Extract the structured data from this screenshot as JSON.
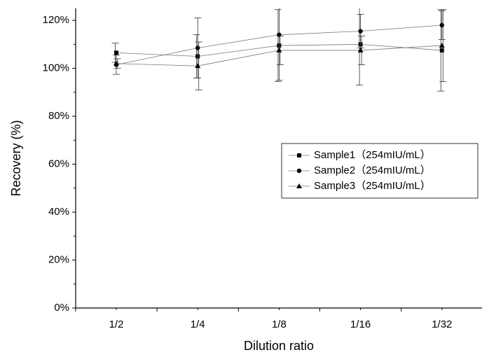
{
  "chart_data": {
    "type": "line",
    "x_label": "Dilution ratio",
    "y_label": "Recovery (%)",
    "categories": [
      "1/2",
      "1/4",
      "1/8",
      "1/16",
      "1/32"
    ],
    "series": [
      {
        "name": "Sample1（254mIU/mL）",
        "marker": "square",
        "color": "#000000",
        "values": [
          106.5,
          105,
          109.5,
          110,
          107.5
        ],
        "errors": [
          4,
          9,
          15,
          17,
          17
        ]
      },
      {
        "name": "Sample2（254mIU/mL）",
        "marker": "circle",
        "color": "#000000",
        "values": [
          101.5,
          108.5,
          114,
          115.5,
          118
        ],
        "errors": [
          4,
          12.5,
          19,
          7,
          6
        ]
      },
      {
        "name": "Sample3（254mIU/mL）",
        "marker": "triangle",
        "color": "#000000",
        "values": [
          102,
          101,
          107.5,
          107.5,
          109.5
        ],
        "errors": [
          2,
          10,
          6,
          6,
          15
        ]
      }
    ],
    "ylim": [
      0,
      125
    ],
    "yticks": [
      {
        "value": 0,
        "label": "0%"
      },
      {
        "value": 20,
        "label": "20%"
      },
      {
        "value": 40,
        "label": "40%"
      },
      {
        "value": 60,
        "label": "60%"
      },
      {
        "value": 80,
        "label": "80%"
      },
      {
        "value": 100,
        "label": "100%"
      },
      {
        "value": 120,
        "label": "120%"
      }
    ],
    "legend": "right"
  }
}
